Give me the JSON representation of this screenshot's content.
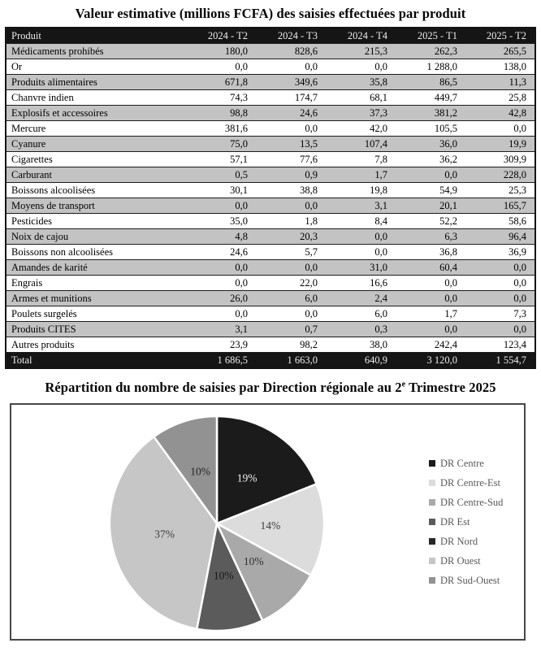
{
  "table_section": {
    "title": "Valeur estimative (millions FCFA) des saisies effectuées par produit",
    "columns": [
      "Produit",
      "2024 - T2",
      "2024 - T3",
      "2024 - T4",
      "2025 - T1",
      "2025 - T2"
    ],
    "rows": [
      {
        "produit": "Médicaments prohibés",
        "values": [
          "180,0",
          "828,6",
          "215,3",
          "262,3",
          "265,5"
        ]
      },
      {
        "produit": "Or",
        "values": [
          "0,0",
          "0,0",
          "0,0",
          "1 288,0",
          "138,0"
        ]
      },
      {
        "produit": "Produits alimentaires",
        "values": [
          "671,8",
          "349,6",
          "35,8",
          "86,5",
          "11,3"
        ]
      },
      {
        "produit": "Chanvre indien",
        "values": [
          "74,3",
          "174,7",
          "68,1",
          "449,7",
          "25,8"
        ]
      },
      {
        "produit": "Explosifs et accessoires",
        "values": [
          "98,8",
          "24,6",
          "37,3",
          "381,2",
          "42,8"
        ]
      },
      {
        "produit": "Mercure",
        "values": [
          "381,6",
          "0,0",
          "42,0",
          "105,5",
          "0,0"
        ]
      },
      {
        "produit": "Cyanure",
        "values": [
          "75,0",
          "13,5",
          "107,4",
          "36,0",
          "19,9"
        ]
      },
      {
        "produit": "Cigarettes",
        "values": [
          "57,1",
          "77,6",
          "7,8",
          "36,2",
          "309,9"
        ]
      },
      {
        "produit": "Carburant",
        "values": [
          "0,5",
          "0,9",
          "1,7",
          "0,0",
          "228,0"
        ]
      },
      {
        "produit": "Boissons alcoolisées",
        "values": [
          "30,1",
          "38,8",
          "19,8",
          "54,9",
          "25,3"
        ]
      },
      {
        "produit": "Moyens de transport",
        "values": [
          "0,0",
          "0,0",
          "3,1",
          "20,1",
          "165,7"
        ]
      },
      {
        "produit": "Pesticides",
        "values": [
          "35,0",
          "1,8",
          "8,4",
          "52,2",
          "58,6"
        ]
      },
      {
        "produit": "Noix de cajou",
        "values": [
          "4,8",
          "20,3",
          "0,0",
          "6,3",
          "96,4"
        ]
      },
      {
        "produit": "Boissons non alcoolisées",
        "values": [
          "24,6",
          "5,7",
          "0,0",
          "36,8",
          "36,9"
        ]
      },
      {
        "produit": "Amandes de karité",
        "values": [
          "0,0",
          "0,0",
          "31,0",
          "60,4",
          "0,0"
        ]
      },
      {
        "produit": "Engrais",
        "values": [
          "0,0",
          "22,0",
          "16,6",
          "0,0",
          "0,0"
        ]
      },
      {
        "produit": "Armes et munitions",
        "values": [
          "26,0",
          "6,0",
          "2,4",
          "0,0",
          "0,0"
        ]
      },
      {
        "produit": "Poulets surgelés",
        "values": [
          "0,0",
          "0,0",
          "6,0",
          "1,7",
          "7,3"
        ]
      },
      {
        "produit": "Produits CITES",
        "values": [
          "3,1",
          "0,7",
          "0,3",
          "0,0",
          "0,0"
        ]
      },
      {
        "produit": "Autres produits",
        "values": [
          "23,9",
          "98,2",
          "38,0",
          "242,4",
          "123,4"
        ]
      }
    ],
    "total": {
      "label": "Total",
      "values": [
        "1 686,5",
        "1 663,0",
        "640,9",
        "3 120,0",
        "1 554,7"
      ]
    }
  },
  "chart_section": {
    "title_part1": "Répartition du nombre de saisies par Direction régionale au 2",
    "title_sup": "e",
    "title_part2": " Trimestre 2025"
  },
  "chart_data": {
    "type": "pie",
    "title": "Répartition du nombre de saisies par Direction régionale au 2e Trimestre 2025",
    "legend_position": "right",
    "unit": "percent",
    "slices": [
      {
        "label": "DR Centre",
        "value": 19,
        "display": "19%",
        "color": "#1b1b1b",
        "text_color": "#f5f5f5"
      },
      {
        "label": "DR Centre-Est",
        "value": 14,
        "display": "14%",
        "color": "#dcdcdc",
        "text_color": "#3d3d3d"
      },
      {
        "label": "DR Centre-Sud",
        "value": 10,
        "display": "10%",
        "color": "#a9a9a9",
        "text_color": "#2f2f2f"
      },
      {
        "label": "DR Est",
        "value": 10,
        "display": "10%",
        "color": "#5b5b5b",
        "text_color": "#161616"
      },
      {
        "label": "DR Nord",
        "value": 0,
        "display": "",
        "color": "#262626",
        "text_color": "#f5f5f5"
      },
      {
        "label": "DR Ouest",
        "value": 37,
        "display": "37%",
        "color": "#c6c6c6",
        "text_color": "#3d3d3d"
      },
      {
        "label": "DR Sud-Ouest",
        "value": 10,
        "display": "10%",
        "color": "#929292",
        "text_color": "#262626"
      }
    ]
  }
}
